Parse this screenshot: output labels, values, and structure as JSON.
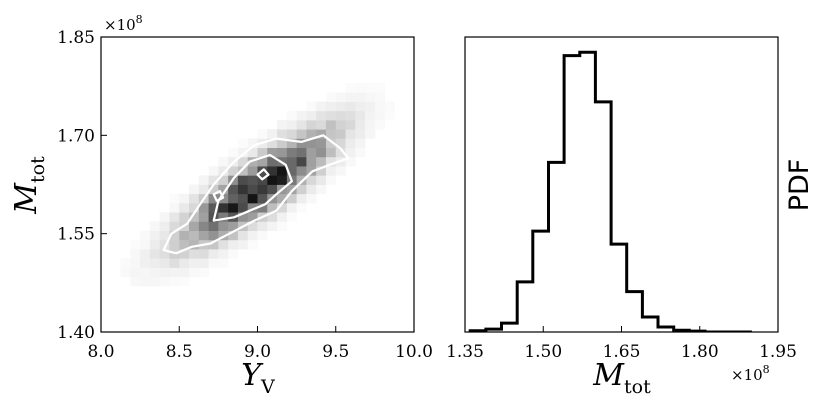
{
  "chart_data": [
    {
      "type": "heatmap",
      "panel": "left",
      "xlabel": "ΥV",
      "xlabel_main": "Υ",
      "xlabel_sub": "V",
      "ylabel": "Mtot",
      "ylabel_main": "M",
      "ylabel_sub": "tot",
      "y_multiplier": "×10",
      "y_multiplier_exp": "8",
      "xlim": [
        8.0,
        10.0
      ],
      "ylim": [
        1.4,
        1.85
      ],
      "xticks": [
        8.0,
        8.5,
        9.0,
        9.5,
        10.0
      ],
      "xtick_labels": [
        "8.0",
        "8.5",
        "9.0",
        "9.5",
        "10.0"
      ],
      "yticks": [
        1.4,
        1.55,
        1.7,
        1.85
      ],
      "ytick_labels": [
        "1.40",
        "1.55",
        "1.70",
        "1.85"
      ],
      "distribution": {
        "peak_x": 9.0,
        "peak_y": 1.62,
        "sigma_x": 0.3,
        "sigma_y": 0.055,
        "correlation": 0.85
      },
      "contours": {
        "color": "#ffffff",
        "outer": [
          [
            8.4,
            1.525
          ],
          [
            8.45,
            1.55
          ],
          [
            8.55,
            1.565
          ],
          [
            8.62,
            1.59
          ],
          [
            8.72,
            1.625
          ],
          [
            8.85,
            1.66
          ],
          [
            8.98,
            1.685
          ],
          [
            9.12,
            1.695
          ],
          [
            9.28,
            1.69
          ],
          [
            9.42,
            1.7
          ],
          [
            9.53,
            1.68
          ],
          [
            9.58,
            1.665
          ],
          [
            9.46,
            1.655
          ],
          [
            9.35,
            1.645
          ],
          [
            9.22,
            1.615
          ],
          [
            9.12,
            1.585
          ],
          [
            8.98,
            1.57
          ],
          [
            8.82,
            1.55
          ],
          [
            8.7,
            1.535
          ],
          [
            8.58,
            1.53
          ],
          [
            8.48,
            1.52
          ],
          [
            8.4,
            1.525
          ]
        ],
        "inner": [
          [
            8.72,
            1.57
          ],
          [
            8.75,
            1.6
          ],
          [
            8.85,
            1.635
          ],
          [
            8.95,
            1.66
          ],
          [
            9.08,
            1.67
          ],
          [
            9.18,
            1.655
          ],
          [
            9.22,
            1.63
          ],
          [
            9.12,
            1.61
          ],
          [
            9.05,
            1.595
          ],
          [
            8.95,
            1.585
          ],
          [
            8.85,
            1.575
          ],
          [
            8.72,
            1.57
          ]
        ],
        "islands": [
          [
            [
              8.72,
              1.61
            ],
            [
              8.76,
              1.615
            ],
            [
              8.78,
              1.605
            ],
            [
              8.74,
              1.6
            ],
            [
              8.72,
              1.61
            ]
          ],
          [
            [
              9.0,
              1.64
            ],
            [
              9.04,
              1.648
            ],
            [
              9.07,
              1.64
            ],
            [
              9.03,
              1.633
            ],
            [
              9.0,
              1.64
            ]
          ]
        ]
      }
    },
    {
      "type": "step-histogram",
      "panel": "right",
      "xlabel": "Mtot",
      "xlabel_main": "M",
      "xlabel_sub": "tot",
      "x_multiplier": "×10",
      "x_multiplier_exp": "8",
      "ylabel": "PDF",
      "xlim": [
        1.35,
        1.95
      ],
      "xticks": [
        1.35,
        1.5,
        1.65,
        1.8,
        1.95
      ],
      "xtick_labels": [
        "1.35",
        "1.50",
        "1.65",
        "1.80",
        "1.95"
      ],
      "bin_edges": [
        1.36,
        1.39,
        1.42,
        1.45,
        1.48,
        1.51,
        1.54,
        1.57,
        1.6,
        1.63,
        1.66,
        1.69,
        1.72,
        1.75,
        1.78,
        1.81,
        1.84,
        1.87,
        1.9
      ],
      "relative_heights": [
        0.004,
        0.01,
        0.03,
        0.17,
        0.342,
        0.575,
        0.937,
        0.948,
        0.78,
        0.298,
        0.137,
        0.051,
        0.017,
        0.006,
        0.003,
        0.0,
        0.0,
        0.0
      ],
      "line_color": "#000000"
    }
  ]
}
